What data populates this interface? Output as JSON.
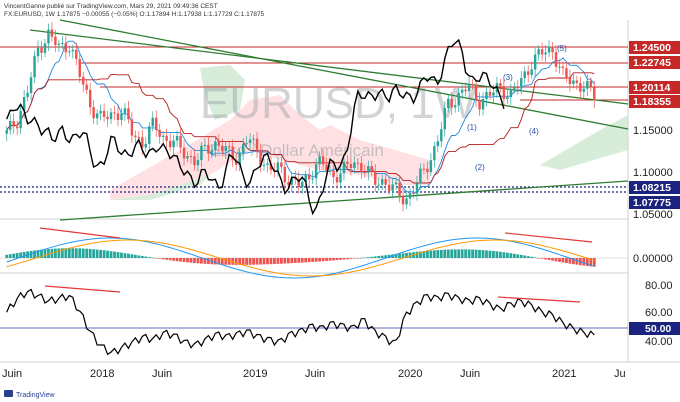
{
  "header": {
    "line1": "VincentGanne publié sur TradingView.com, Mars 29, 2021 09:49:36 CEST",
    "line2": "FX:EURUSD, 1W  1.17875  −0.00055 (−0.05%)  O:1.17894  H:1.17938  L:1.17729  C:1.17875"
  },
  "watermark": {
    "symbol": "EURUSD, 1W",
    "name": "Euro / Dollar Américain"
  },
  "footer": {
    "brand": "TradingView"
  },
  "colors": {
    "up": "#26a69a",
    "down": "#ef5350",
    "price_line": "#000000",
    "trend_green": "#2e7d32",
    "resistance_red": "#c62828",
    "support_blue": "#1a237e",
    "cloud_green": "#c8e6c9",
    "cloud_red": "#ffcdd2"
  },
  "chart_data": [
    {
      "type": "candlestick",
      "symbol": "FX:EURUSD",
      "timeframe": "1W",
      "ylim": [
        1.05,
        1.26
      ],
      "x": [
        "Juin",
        "2018",
        "Juin",
        "2019",
        "Juin",
        "2020",
        "Juin",
        "2021",
        "Ju"
      ],
      "close_path": [
        1.14,
        1.155,
        1.185,
        1.23,
        1.245,
        1.23,
        1.235,
        1.2,
        1.17,
        1.155,
        1.16,
        1.165,
        1.14,
        1.13,
        1.15,
        1.135,
        1.13,
        1.12,
        1.11,
        1.125,
        1.13,
        1.12,
        1.115,
        1.135,
        1.12,
        1.1,
        1.105,
        1.09,
        1.085,
        1.1,
        1.11,
        1.095,
        1.1,
        1.11,
        1.105,
        1.09,
        1.09,
        1.08,
        1.07,
        1.085,
        1.105,
        1.13,
        1.17,
        1.18,
        1.19,
        1.175,
        1.18,
        1.19,
        1.18,
        1.195,
        1.215,
        1.225,
        1.23,
        1.2,
        1.195,
        1.19,
        1.18
      ],
      "price_tags": [
        {
          "value": "1.24500",
          "color": "#c62828"
        },
        {
          "value": "1.22745",
          "color": "#c62828"
        },
        {
          "value": "1.20114",
          "color": "#c62828"
        },
        {
          "value": "1.18355",
          "color": "#c62828"
        },
        {
          "value": "1.08215",
          "color": "#1a237e"
        },
        {
          "value": "1.07775",
          "color": "#1a237e"
        }
      ],
      "axis_ticks": [
        "1.15000",
        "1.10000",
        "1.05000"
      ],
      "wave_labels": [
        "(1)",
        "(2)",
        "(3)",
        "(4)",
        "(5)"
      ]
    },
    {
      "type": "bar",
      "indicator": "MACD histogram",
      "axis_ticks": [
        "0.00000"
      ]
    },
    {
      "type": "line",
      "indicator": "RSI",
      "axis_ticks": [
        "80.00",
        "60.00",
        "40.00"
      ],
      "current_value": "50.00",
      "values": [
        60,
        70,
        75,
        72,
        68,
        70,
        72,
        60,
        45,
        35,
        30,
        34,
        38,
        42,
        40,
        45,
        43,
        38,
        36,
        40,
        44,
        42,
        44,
        46,
        42,
        40,
        38,
        44,
        46,
        50,
        48,
        52,
        50,
        48,
        55,
        46,
        42,
        36,
        58,
        66,
        72,
        70,
        73,
        70,
        68,
        70,
        66,
        62,
        66,
        68,
        65,
        60,
        58,
        52,
        48,
        45,
        43
      ]
    }
  ]
}
